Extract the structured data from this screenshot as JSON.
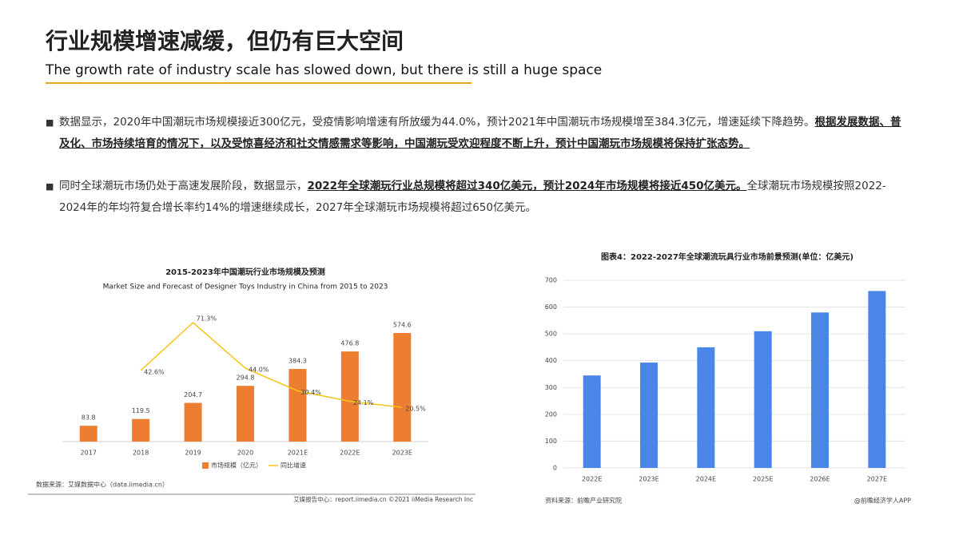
{
  "header": {
    "title": "行业规模增速减缓，但仍有巨大空间",
    "subtitle": "The growth rate of industry scale has slowed down, but there is still a huge space"
  },
  "bullets": [
    [
      {
        "text": "数据显示，2020年中国潮玩市场规模接近300亿元，受疫情影响增速有所放缓为44.0%，预计2021年中国潮玩市场规模增至384.3亿元，增速延续下降趋势。",
        "bold": false
      },
      {
        "text": "根据发展数据、普及化、市场持续培育的情况下，以及受惊喜经济和社交情感需求等影响，中国潮玩受欢迎程度不断上升，预计中国潮玩市场规模将保持扩张态势。",
        "bold": true
      }
    ],
    [
      {
        "text": "同时全球潮玩市场仍处于高速发展阶段，数据显示，",
        "bold": false
      },
      {
        "text": "2022年全球潮玩行业总规模将超过340亿美元，预计2024年市场规模将接近450亿美元。",
        "bold": true
      },
      {
        "text": "全球潮玩市场规模按照2022-2024年的年均符复合增长率约14%的增速继续成长，2027年全球潮玩市场规模将超过650亿美元。",
        "bold": false
      }
    ]
  ],
  "chart_data": [
    {
      "type": "bar",
      "title": "2015-2023年中国潮玩行业市场规模及预测",
      "subtitle": "Market Size and Forecast of Designer Toys Industry in China from 2015 to 2023",
      "categories": [
        "2017",
        "2018",
        "2019",
        "2020",
        "2021E",
        "2022E",
        "2023E"
      ],
      "series": [
        {
          "name": "市场规模（亿元）",
          "color": "#ed7d31",
          "values": [
            83.8,
            119.5,
            204.7,
            294.8,
            384.3,
            476.8,
            574.6
          ]
        },
        {
          "name": "同比增速",
          "color": "#f5c518",
          "type": "line",
          "axis": "y2",
          "values": [
            null,
            42.6,
            71.3,
            44.0,
            30.4,
            24.1,
            20.5
          ],
          "value_labels": [
            null,
            "42.6%",
            "71.3%",
            "44.0%",
            "30.4%",
            "24.1%",
            "20.5%"
          ]
        }
      ],
      "source": "数据来源：艾媒数据中心（data.iimedia.cn）",
      "footer": "艾媒报告中心：report.iimedia.cn  ©2021  iiMedia Research  Inc"
    },
    {
      "type": "bar",
      "title": "图表4：2022-2027年全球潮流玩具行业市场前景预测(单位：亿美元)",
      "categories": [
        "2022E",
        "2023E",
        "2024E",
        "2025E",
        "2026E",
        "2027E"
      ],
      "values": [
        345,
        393,
        450,
        510,
        580,
        660
      ],
      "color": "#4a86e8",
      "ylim": [
        0,
        700
      ],
      "yticks": [
        0,
        100,
        200,
        300,
        400,
        500,
        600,
        700
      ],
      "grid": true,
      "source": "资料来源：前瞻产业研究院",
      "footer": "@前瞻经济学人APP"
    }
  ]
}
